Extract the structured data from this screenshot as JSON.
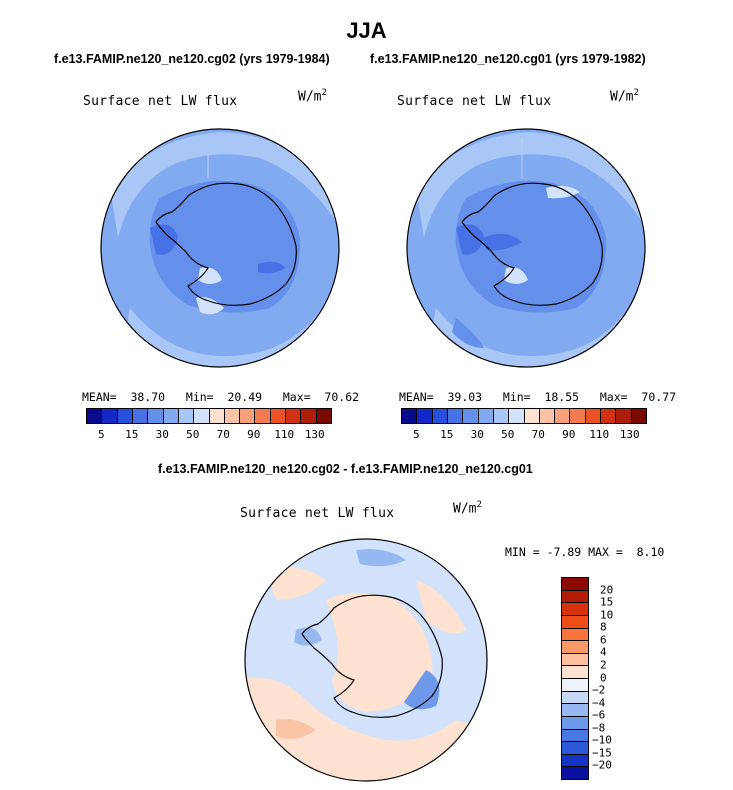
{
  "title": "JJA",
  "panels": {
    "left": {
      "case_label": "f.e13.FAMIP.ne120_ne120.cg02 (yrs 1979-1984)",
      "field_label": "Surface net LW flux",
      "units_base": "W/m",
      "units_exp": "2",
      "stats": {
        "mean_label": "MEAN=",
        "mean": "38.70",
        "min_label": "Min=",
        "min": "20.49",
        "max_label": "Max=",
        "max": "70.62"
      }
    },
    "right": {
      "case_label": "f.e13.FAMIP.ne120_ne120.cg01 (yrs 1979-1982)",
      "field_label": "Surface net LW flux",
      "units_base": "W/m",
      "units_exp": "2",
      "stats": {
        "mean_label": "MEAN=",
        "mean": "39.03",
        "min_label": "Min=",
        "min": "18.55",
        "max_label": "Max=",
        "max": "70.77"
      }
    },
    "diff": {
      "case_label": "f.e13.FAMIP.ne120_ne120.cg02 - f.e13.FAMIP.ne120_ne120.cg01",
      "field_label": "Surface net LW flux",
      "units_base": "W/m",
      "units_exp": "2",
      "stats": {
        "min_label": "MIN =",
        "min": "-7.89",
        "max_label": "MAX =",
        "max": "8.10"
      }
    }
  },
  "colorbar_abs": {
    "colors": [
      "#0a0a8c",
      "#1428c8",
      "#2850dc",
      "#4672e6",
      "#6490ec",
      "#82aaf0",
      "#a8c6f6",
      "#d2e2fa",
      "#fde2d2",
      "#fcc4a6",
      "#f8a07a",
      "#f47a50",
      "#ec5228",
      "#d23214",
      "#aa1e0a",
      "#7a0a04"
    ],
    "tick_labels": [
      "5",
      "15",
      "30",
      "50",
      "70",
      "90",
      "110",
      "130"
    ]
  },
  "colorbar_diff": {
    "colors": [
      "#8c0a04",
      "#b41a08",
      "#d8320c",
      "#f04e18",
      "#f8743c",
      "#fa9868",
      "#fcc09c",
      "#fde2d2",
      "#eef2fa",
      "#c6d8f6",
      "#96b8f0",
      "#6e98ea",
      "#4a78e2",
      "#2a58d8",
      "#1434c4",
      "#0a10a0"
    ],
    "tick_labels": [
      "20",
      "15",
      "10",
      "8",
      "6",
      "4",
      "2",
      "0",
      "−2",
      "−4",
      "−6",
      "−8",
      "−10",
      "−15",
      "−20"
    ]
  },
  "maps": {
    "left": {
      "projection": "polar-stereographic-south",
      "base_color": "#82aaf0"
    },
    "right": {
      "projection": "polar-stereographic-south",
      "base_color": "#82aaf0"
    },
    "diff": {
      "projection": "polar-stereographic-south",
      "base_color": "#d2e2fa"
    }
  }
}
